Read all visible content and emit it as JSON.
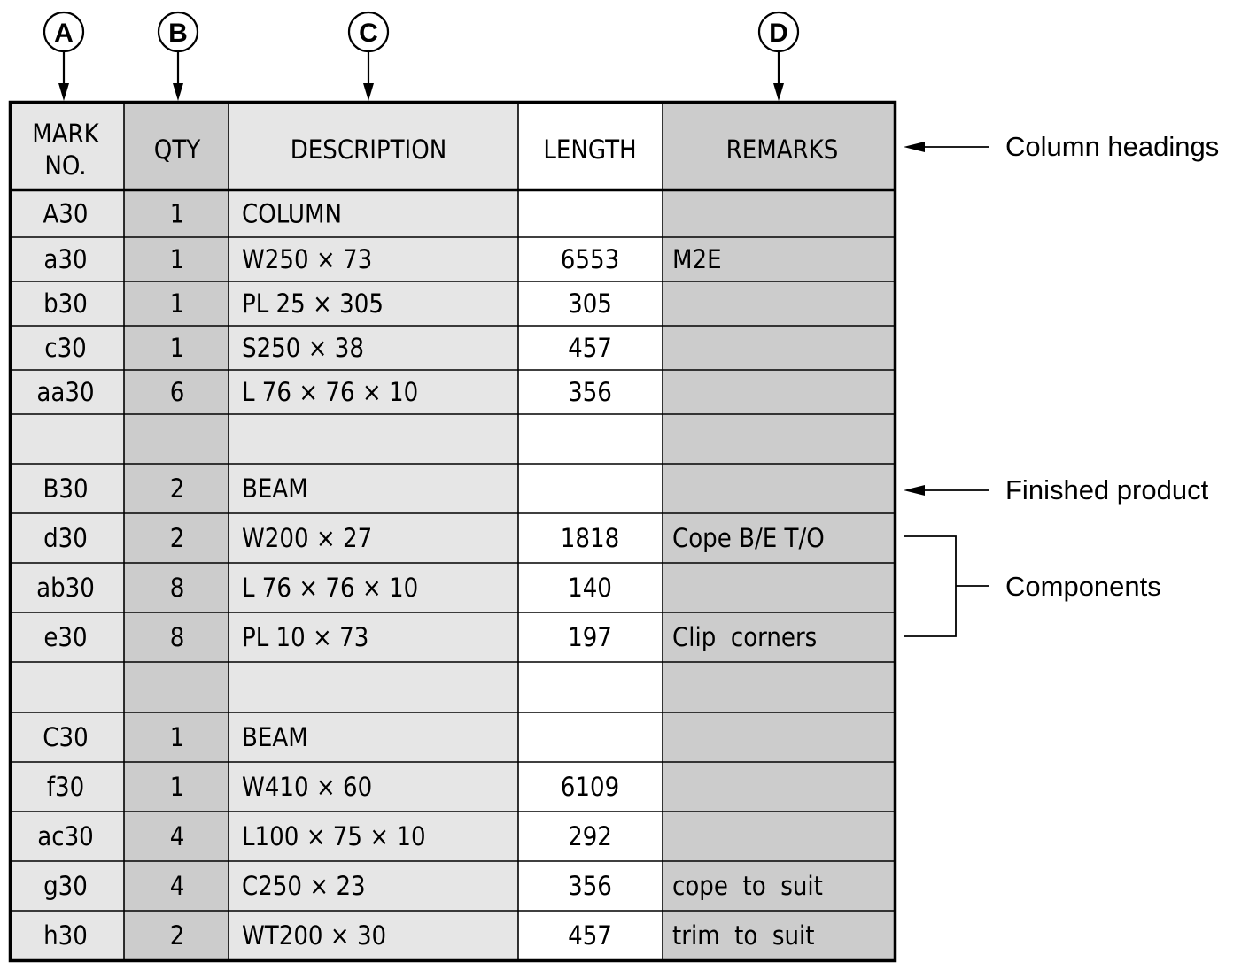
{
  "column_keys": [
    "A",
    "B",
    "C",
    "D"
  ],
  "headers": {
    "mark_line1": "MARK",
    "mark_line2": "NO.",
    "qty": "QTY",
    "description": "DESCRIPTION",
    "length": "LENGTH",
    "remarks": "REMARKS"
  },
  "rows": [
    {
      "mark": "A30",
      "qty": "1",
      "description": "COLUMN",
      "length": "",
      "remarks": ""
    },
    {
      "mark": "a30",
      "qty": "1",
      "description": "W250 × 73",
      "length": "6553",
      "remarks": "M2E"
    },
    {
      "mark": "b30",
      "qty": "1",
      "description": "PL 25 × 305",
      "length": "305",
      "remarks": ""
    },
    {
      "mark": "c30",
      "qty": "1",
      "description": "S250 × 38",
      "length": "457",
      "remarks": ""
    },
    {
      "mark": "aa30",
      "qty": "6",
      "description": "L 76 × 76 × 10",
      "length": "356",
      "remarks": ""
    },
    {
      "mark": "",
      "qty": "",
      "description": "",
      "length": "",
      "remarks": ""
    },
    {
      "mark": "B30",
      "qty": "2",
      "description": "BEAM",
      "length": "",
      "remarks": ""
    },
    {
      "mark": "d30",
      "qty": "2",
      "description": "W200 × 27",
      "length": "1818",
      "remarks": "Cope B/E T/O"
    },
    {
      "mark": "ab30",
      "qty": "8",
      "description": "L 76 × 76 × 10",
      "length": "140",
      "remarks": ""
    },
    {
      "mark": "e30",
      "qty": "8",
      "description": "PL 10 × 73",
      "length": "197",
      "remarks": "Clip  corners"
    },
    {
      "mark": "",
      "qty": "",
      "description": "",
      "length": "",
      "remarks": ""
    },
    {
      "mark": "C30",
      "qty": "1",
      "description": "BEAM",
      "length": "",
      "remarks": ""
    },
    {
      "mark": "f30",
      "qty": "1",
      "description": "W410 × 60",
      "length": "6109",
      "remarks": ""
    },
    {
      "mark": "ac30",
      "qty": "4",
      "description": "L100 × 75 × 10",
      "length": "292",
      "remarks": ""
    },
    {
      "mark": "g30",
      "qty": "4",
      "description": "C250 × 23",
      "length": "356",
      "remarks": "cope  to  suit"
    },
    {
      "mark": "h30",
      "qty": "2",
      "description": "WT200 × 30",
      "length": "457",
      "remarks": "trim  to  suit"
    }
  ],
  "annotations": {
    "column_headings": "Column headings",
    "finished_product": "Finished product",
    "components": "Components"
  },
  "colors": {
    "light_fill": "#e6e6e6",
    "dark_fill": "#cccccc",
    "white_fill": "#ffffff",
    "line": "#000000"
  }
}
